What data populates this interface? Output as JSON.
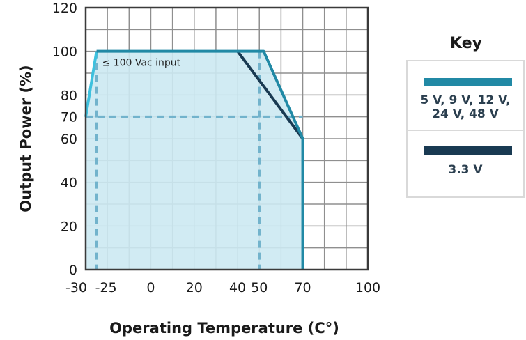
{
  "chart_data": {
    "type": "area",
    "xlabel": "Operating Temperature (C°)",
    "ylabel": "Output Power (%)",
    "xlim": [
      -30,
      100
    ],
    "ylim": [
      0,
      120
    ],
    "x_ticks": [
      -30,
      -25,
      0,
      20,
      40,
      50,
      70,
      100
    ],
    "x_tick_labels": [
      "-30",
      "-25",
      "0",
      "20",
      "40",
      "50",
      "70",
      "100"
    ],
    "y_ticks": [
      0,
      20,
      40,
      60,
      70,
      80,
      100,
      120
    ],
    "grid": true,
    "series": [
      {
        "name": "5 V, 9 V, 12 V, 24 V, 48 V",
        "color": "#2189a5",
        "x": [
          -25,
          40,
          52,
          70,
          70
        ],
        "y": [
          100,
          100,
          100,
          60,
          0
        ]
      },
      {
        "name": "3.3 V",
        "color": "#193a52",
        "x": [
          40,
          70
        ],
        "y": [
          100,
          60
        ]
      },
      {
        "name": "≤ 100 Vac input",
        "color": "#3ec1de",
        "x": [
          -30,
          -25
        ],
        "y": [
          70,
          100
        ]
      }
    ],
    "reference_lines": {
      "vertical_x": [
        -25,
        50
      ],
      "horizontal_y": [
        70
      ]
    },
    "annotation": "≤ 100 Vac input",
    "fill_color": "#cce9f2"
  },
  "key": {
    "title": "Key",
    "items": [
      {
        "label_lines": [
          "5 V, 9 V, 12 V,",
          "24 V, 48 V"
        ],
        "color": "#2189a5"
      },
      {
        "label_lines": [
          "3.3 V"
        ],
        "color": "#193a52"
      }
    ]
  }
}
